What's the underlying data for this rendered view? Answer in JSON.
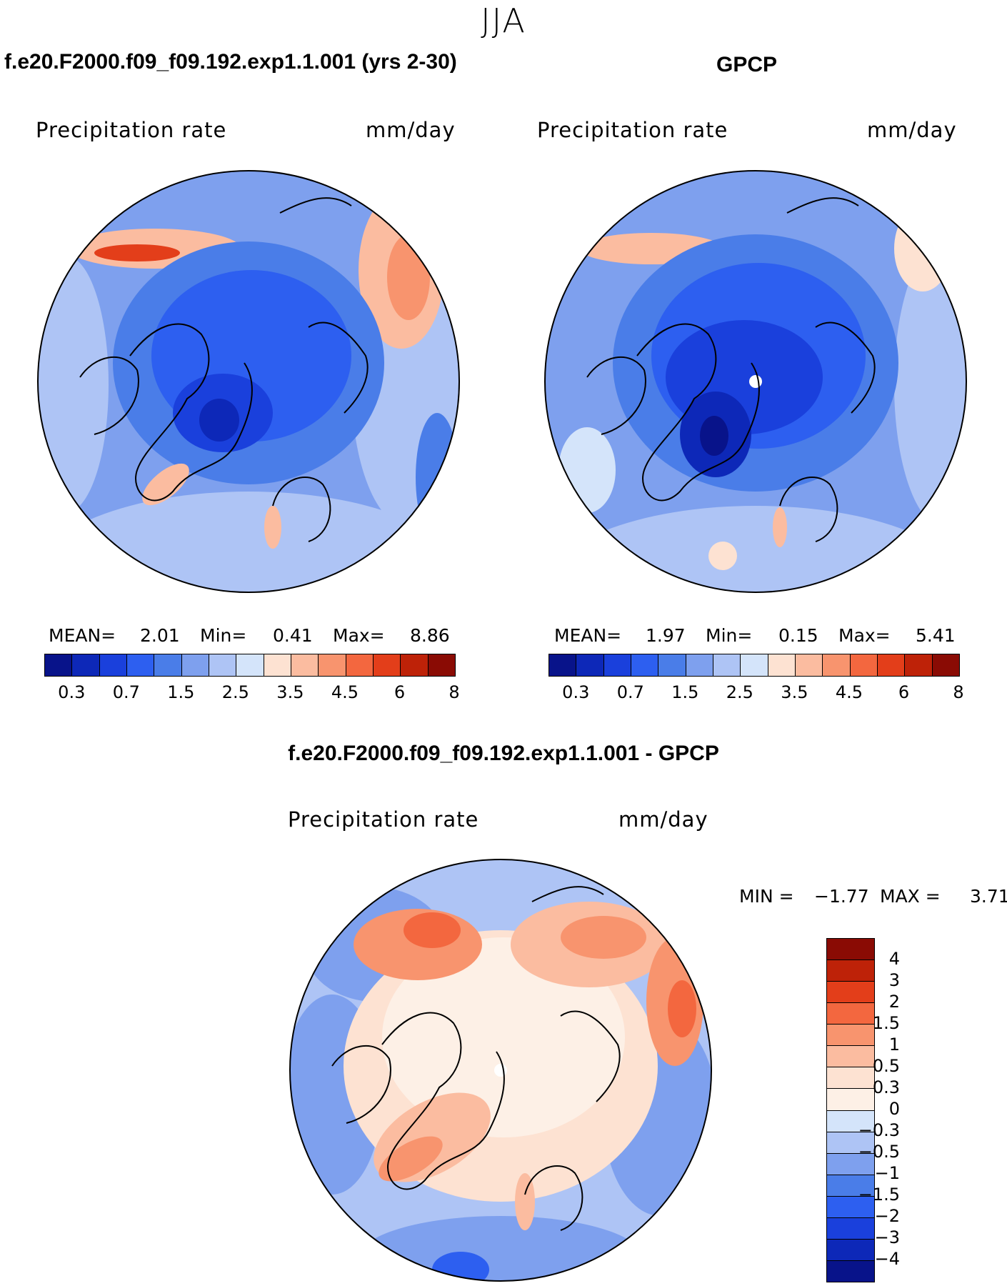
{
  "season": "JJA",
  "panels": {
    "model": {
      "title": "f.e20.F2000.f09_f09.192.exp1.1.001 (yrs 2-30)",
      "variable": "Precipitation rate",
      "units": "mm/day",
      "mean_label": "MEAN=",
      "mean": "2.01",
      "min_label": "Min=",
      "min": "0.41",
      "max_label": "Max=",
      "max": "8.86"
    },
    "obs": {
      "title": "GPCP",
      "variable": "Precipitation rate",
      "units": "mm/day",
      "mean_label": "MEAN=",
      "mean": "1.97",
      "min_label": "Min=",
      "min": "0.15",
      "max_label": "Max=",
      "max": "5.41"
    },
    "diff": {
      "title": "f.e20.F2000.f09_f09.192.exp1.1.001 - GPCP",
      "variable": "Precipitation rate",
      "units": "mm/day",
      "min_label": "MIN =",
      "min": "−1.77",
      "max_label": "MAX =",
      "max": "3.71"
    }
  },
  "abs_colorbar": {
    "ticks": [
      "0.3",
      "0.7",
      "1.5",
      "2.5",
      "3.5",
      "4.5",
      "6",
      "8"
    ],
    "colors": [
      "#08138a",
      "#0d28b8",
      "#1a40dc",
      "#2d5ff0",
      "#4a7de8",
      "#7ea0ee",
      "#aec4f5",
      "#d4e4fa",
      "#fde2d2",
      "#fbbca0",
      "#f8946e",
      "#f3673f",
      "#e33e1a",
      "#be2208",
      "#8a0b04"
    ]
  },
  "diff_colorbar": {
    "ticks": [
      "4",
      "3",
      "2",
      "1.5",
      "1",
      "0.5",
      "0.3",
      "0",
      "−0.3",
      "−0.5",
      "−1",
      "−1.5",
      "−2",
      "−3",
      "−4"
    ],
    "colors": [
      "#8a0b04",
      "#be2208",
      "#e33e1a",
      "#f3673f",
      "#f8946e",
      "#fbbca0",
      "#fde2d2",
      "#fdf0e6",
      "#d4e4fa",
      "#aec4f5",
      "#7ea0ee",
      "#4a7de8",
      "#2d5ff0",
      "#1a40dc",
      "#0d28b8",
      "#08138a"
    ]
  }
}
